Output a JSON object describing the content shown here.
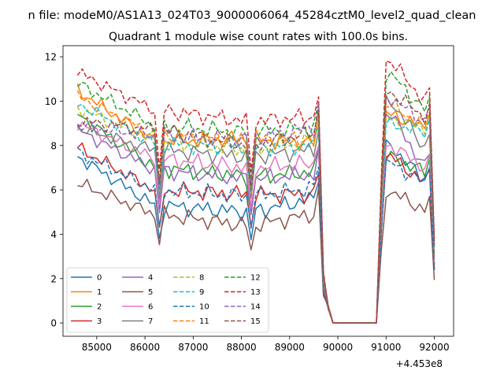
{
  "figure": {
    "suptitle": "n file: modeM0/AS1A13_024T03_9000006064_45284cztM0_level2_quad_clean",
    "title": "Quadrant 1 module wise count rates with 100.0s bins.",
    "offset_label": "+4.453e8"
  },
  "chart_data": {
    "type": "line",
    "title": "Quadrant 1 module wise count rates with 100.0s bins.",
    "xlabel": "",
    "ylabel": "",
    "x_offset": 445300000,
    "xlim": [
      84300,
      92400
    ],
    "ylim": [
      -0.6,
      12.5
    ],
    "xticks": [
      85000,
      86000,
      87000,
      88000,
      89000,
      90000,
      91000,
      92000
    ],
    "xtick_labels": [
      "85000",
      "86000",
      "87000",
      "88000",
      "89000",
      "90000",
      "91000",
      "92000"
    ],
    "yticks": [
      0,
      2,
      4,
      6,
      8,
      10,
      12
    ],
    "ytick_labels": [
      "0",
      "2",
      "4",
      "6",
      "8",
      "10",
      "12"
    ],
    "grid": false,
    "legend": {
      "placement": "lower-left",
      "columns": 4
    },
    "x_start": 84600,
    "x_step": 100,
    "gap_start_index": 11,
    "gap_end_index": 18,
    "series": [
      {
        "name": "0",
        "color": "#1f77b4",
        "dash": "solid",
        "levels": [
          7.5,
          5.3,
          5.0,
          5.6,
          8.0,
          6.4
        ]
      },
      {
        "name": "1",
        "color": "#ff7f0e",
        "dash": "solid",
        "levels": [
          10.5,
          8.2,
          8.3,
          8.1,
          9.4,
          8.8
        ]
      },
      {
        "name": "2",
        "color": "#2ca02c",
        "dash": "solid",
        "levels": [
          9.4,
          7.0,
          6.6,
          6.8,
          7.5,
          6.8
        ]
      },
      {
        "name": "3",
        "color": "#d62728",
        "dash": "solid",
        "levels": [
          7.9,
          6.0,
          5.8,
          5.8,
          7.5,
          6.3
        ]
      },
      {
        "name": "4",
        "color": "#9467bd",
        "dash": "solid",
        "levels": [
          8.7,
          6.9,
          6.5,
          6.7,
          9.4,
          7.0
        ]
      },
      {
        "name": "5",
        "color": "#8c564b",
        "dash": "solid",
        "levels": [
          6.3,
          4.9,
          4.4,
          4.9,
          5.9,
          5.1
        ]
      },
      {
        "name": "6",
        "color": "#e377c2",
        "dash": "solid",
        "levels": [
          9.0,
          7.4,
          7.0,
          7.2,
          8.0,
          7.0
        ]
      },
      {
        "name": "7",
        "color": "#7f7f7f",
        "dash": "solid",
        "levels": [
          8.8,
          7.8,
          7.5,
          7.8,
          10.0,
          7.9
        ]
      },
      {
        "name": "8",
        "color": "#bcbd22",
        "dash": "dashed",
        "levels": [
          9.7,
          8.2,
          7.8,
          8.2,
          9.2,
          8.8
        ]
      },
      {
        "name": "9",
        "color": "#17becf",
        "dash": "dashed",
        "levels": [
          9.9,
          8.1,
          7.9,
          8.0,
          9.0,
          8.6
        ]
      },
      {
        "name": "10",
        "color": "#1f77b4",
        "dash": "dashed",
        "levels": [
          7.7,
          6.0,
          5.7,
          6.1,
          7.2,
          6.3
        ]
      },
      {
        "name": "11",
        "color": "#ff7f0e",
        "dash": "dashed",
        "levels": [
          10.2,
          8.5,
          8.2,
          8.3,
          9.8,
          8.9
        ]
      },
      {
        "name": "12",
        "color": "#2ca02c",
        "dash": "dashed",
        "levels": [
          10.8,
          8.9,
          8.6,
          8.8,
          11.2,
          9.6
        ]
      },
      {
        "name": "13",
        "color": "#d62728",
        "dash": "dashed",
        "levels": [
          11.3,
          9.6,
          9.1,
          9.3,
          11.8,
          10.0
        ]
      },
      {
        "name": "14",
        "color": "#9467bd",
        "dash": "dashed",
        "levels": [
          8.9,
          8.4,
          8.3,
          8.8,
          10.1,
          9.1
        ]
      },
      {
        "name": "15",
        "color": "#8c564b",
        "dash": "dashed",
        "levels": [
          9.1,
          8.7,
          8.0,
          8.6,
          10.4,
          9.3
        ]
      }
    ]
  }
}
